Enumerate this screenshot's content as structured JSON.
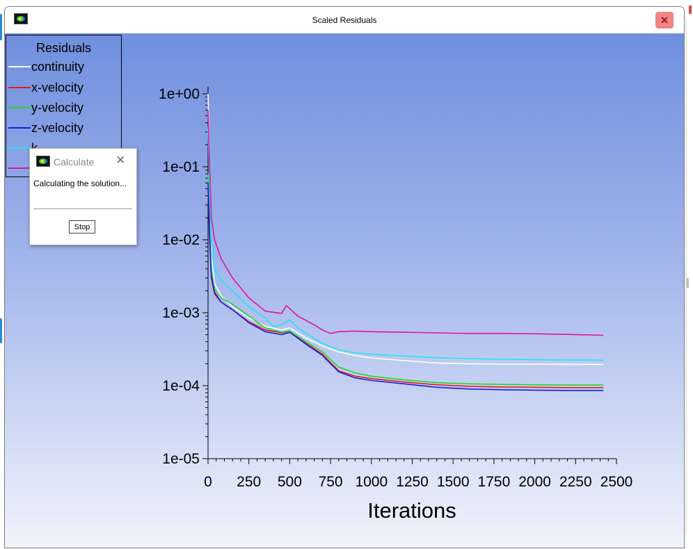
{
  "window": {
    "title": "Scaled Residuals",
    "close_glyph": "✕",
    "icon": "fluent-app-icon"
  },
  "legend": {
    "title": "Residuals",
    "items": [
      {
        "label": "continuity",
        "color": "#ffffff"
      },
      {
        "label": "x-velocity",
        "color": "#e81919"
      },
      {
        "label": "y-velocity",
        "color": "#22d922"
      },
      {
        "label": "z-velocity",
        "color": "#1a1adf"
      },
      {
        "label": "k",
        "color": "#20e6f0"
      },
      {
        "label": "",
        "color": "#e0149c"
      }
    ]
  },
  "dialog": {
    "title": "Calculate",
    "message": "Calculating the solution...",
    "stop_label": "Stop",
    "close_glyph": "✕",
    "icon": "fluent-app-icon"
  },
  "chart_data": {
    "type": "line",
    "xlabel": "Iterations",
    "ylabel": "",
    "title": "",
    "xscale": "linear",
    "yscale": "log",
    "xlim": [
      0,
      2500
    ],
    "ylim": [
      1e-05,
      1
    ],
    "x_ticks": [
      0,
      250,
      500,
      750,
      1000,
      1250,
      1500,
      1750,
      2000,
      2250,
      2500
    ],
    "x_tick_labels": [
      "0",
      "250",
      "500",
      "750",
      "1000",
      "1250",
      "1500",
      "1750",
      "2000",
      "2250",
      "2500"
    ],
    "y_ticks": [
      1,
      0.1,
      0.01,
      0.001,
      0.0001,
      1e-05
    ],
    "y_tick_labels": [
      "1e+00",
      "1e-01",
      "1e-02",
      "1e-03",
      "1e-04",
      "1e-05"
    ],
    "grid": false,
    "legend_position": "top-left",
    "series": [
      {
        "name": "continuity",
        "color": "#ffffff",
        "x": [
          0,
          10,
          20,
          40,
          80,
          150,
          250,
          350,
          450,
          500,
          600,
          700,
          800,
          900,
          1000,
          1200,
          1400,
          1600,
          1800,
          2000,
          2200,
          2420
        ],
        "y": [
          1,
          0.1,
          0.006,
          0.0025,
          0.0017,
          0.0012,
          0.00085,
          0.00065,
          0.00058,
          0.00062,
          0.00045,
          0.00035,
          0.00029,
          0.00026,
          0.00024,
          0.00022,
          0.000205,
          0.0002,
          0.000198,
          0.000197,
          0.000196,
          0.000195
        ]
      },
      {
        "name": "x-velocity",
        "color": "#e81919",
        "x": [
          0,
          10,
          20,
          40,
          80,
          150,
          250,
          350,
          450,
          500,
          600,
          700,
          800,
          900,
          1000,
          1200,
          1400,
          1600,
          1800,
          2000,
          2200,
          2420
        ],
        "y": [
          0.05,
          0.01,
          0.003,
          0.0018,
          0.0014,
          0.0011,
          0.00075,
          0.00058,
          0.00053,
          0.00055,
          0.00038,
          0.00027,
          0.00016,
          0.000135,
          0.000125,
          0.000112,
          0.000103,
          9.8e-05,
          9.6e-05,
          9.5e-05,
          9.4e-05,
          9.4e-05
        ]
      },
      {
        "name": "y-velocity",
        "color": "#22d922",
        "x": [
          0,
          10,
          20,
          40,
          80,
          150,
          250,
          350,
          450,
          500,
          600,
          700,
          800,
          900,
          1000,
          1200,
          1400,
          1600,
          1800,
          2000,
          2200,
          2420
        ],
        "y": [
          0.08,
          0.015,
          0.004,
          0.0021,
          0.0016,
          0.0013,
          0.0009,
          0.00062,
          0.00054,
          0.00056,
          0.0004,
          0.00029,
          0.00018,
          0.00015,
          0.000135,
          0.00012,
          0.00011,
          0.000106,
          0.000104,
          0.000103,
          0.000102,
          0.000102
        ]
      },
      {
        "name": "z-velocity",
        "color": "#1a1adf",
        "x": [
          0,
          10,
          20,
          40,
          80,
          150,
          250,
          350,
          450,
          500,
          600,
          700,
          800,
          900,
          1000,
          1200,
          1400,
          1600,
          1800,
          2000,
          2200,
          2420
        ],
        "y": [
          0.06,
          0.012,
          0.0032,
          0.0019,
          0.0014,
          0.0011,
          0.00073,
          0.00055,
          0.0005,
          0.00054,
          0.00037,
          0.00026,
          0.000155,
          0.000128,
          0.000118,
          0.000106,
          9.5e-05,
          9e-05,
          8.8e-05,
          8.7e-05,
          8.6e-05,
          8.6e-05
        ]
      },
      {
        "name": "k",
        "color": "#20e6f0",
        "x": [
          0,
          10,
          20,
          40,
          80,
          150,
          250,
          350,
          400,
          450,
          500,
          550,
          600,
          700,
          800,
          900,
          1000,
          1200,
          1400,
          1600,
          1800,
          2000,
          2200,
          2420
        ],
        "y": [
          0.35,
          0.05,
          0.01,
          0.004,
          0.0028,
          0.002,
          0.0012,
          0.00085,
          0.00065,
          0.00068,
          0.0008,
          0.00062,
          0.00052,
          0.00038,
          0.00031,
          0.00028,
          0.00027,
          0.000255,
          0.000242,
          0.000235,
          0.00023,
          0.000228,
          0.000225,
          0.000223
        ]
      },
      {
        "name": "",
        "color": "#e0149c",
        "x": [
          0,
          10,
          20,
          40,
          80,
          150,
          250,
          350,
          450,
          480,
          550,
          650,
          700,
          750,
          800,
          900,
          1000,
          1200,
          1400,
          1600,
          1800,
          2000,
          2200,
          2420
        ],
        "y": [
          0.6,
          0.1,
          0.02,
          0.01,
          0.0055,
          0.003,
          0.0016,
          0.00105,
          0.00098,
          0.00125,
          0.0009,
          0.00068,
          0.00058,
          0.00052,
          0.00055,
          0.00056,
          0.00055,
          0.00054,
          0.00053,
          0.00052,
          0.00052,
          0.000515,
          0.000505,
          0.00049
        ]
      }
    ]
  }
}
